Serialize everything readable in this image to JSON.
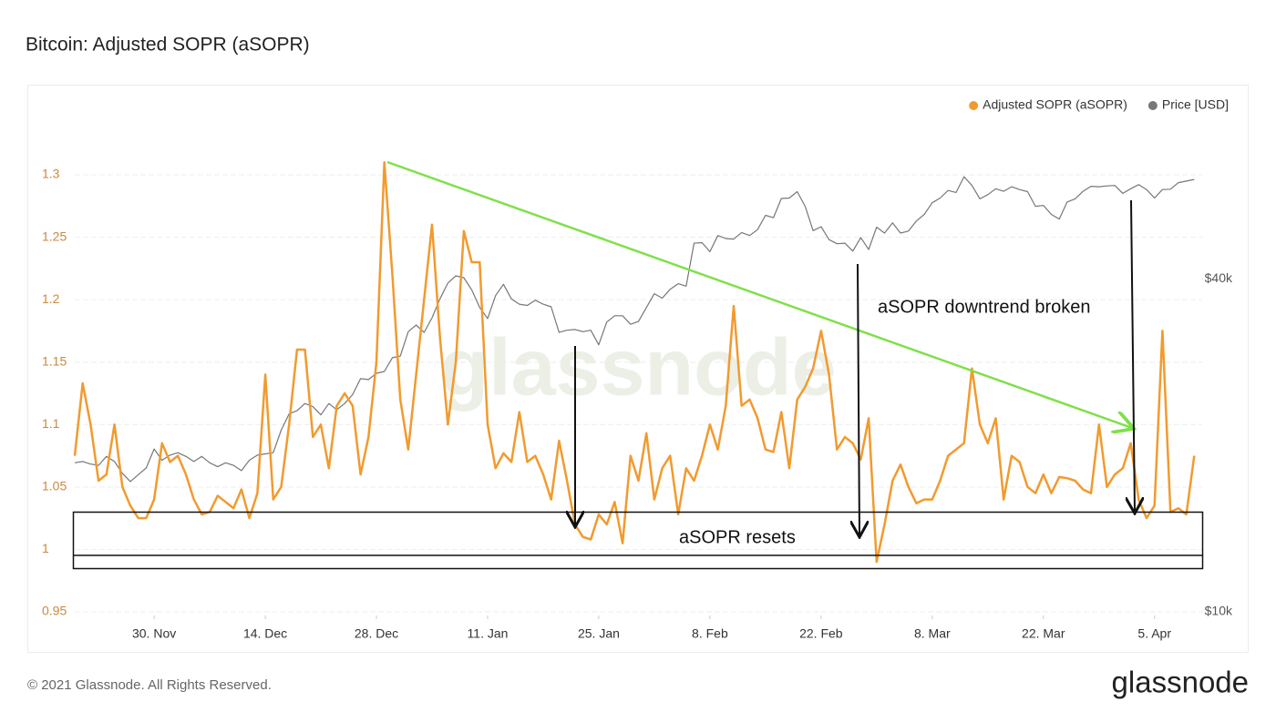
{
  "chart_data": {
    "type": "line",
    "title": "Bitcoin: Adjusted SOPR (aSOPR)",
    "watermark": "glassnode",
    "annotations": [
      "aSOPR downtrend broken",
      "aSOPR resets"
    ],
    "x": [
      -10,
      -9,
      -8,
      -7,
      -6,
      -5,
      -4,
      -3,
      -2,
      -1,
      0,
      1,
      2,
      3,
      4,
      5,
      6,
      7,
      8,
      9,
      10,
      11,
      12,
      13,
      14,
      15,
      16,
      17,
      18,
      19,
      20,
      21,
      22,
      23,
      24,
      25,
      26,
      27,
      28,
      29,
      30,
      31,
      32,
      33,
      34,
      35,
      36,
      37,
      38,
      39,
      40,
      41,
      42,
      43,
      44,
      45,
      46,
      47,
      48,
      49,
      50,
      51,
      52,
      53,
      54,
      55,
      56,
      57,
      58,
      59,
      60,
      61,
      62,
      63,
      64,
      65,
      66,
      67,
      68,
      69,
      70,
      71,
      72,
      73,
      74,
      75,
      76,
      77,
      78,
      79,
      80,
      81,
      82,
      83,
      84,
      85,
      86,
      87,
      88,
      89,
      90,
      91,
      92,
      93,
      94,
      95,
      96,
      97,
      98,
      99,
      100,
      101,
      102,
      103,
      104,
      105,
      106,
      107,
      108,
      109,
      110,
      111,
      112,
      113,
      114,
      115,
      116,
      117,
      118,
      119,
      120,
      121,
      122,
      123,
      124,
      125,
      126,
      127,
      128,
      129,
      130,
      131
    ],
    "xlim": [
      -10,
      132
    ],
    "xticks": [
      {
        "value": 0,
        "label": "30. Nov"
      },
      {
        "value": 14,
        "label": "14. Dec"
      },
      {
        "value": 28,
        "label": "28. Dec"
      },
      {
        "value": 42,
        "label": "11. Jan"
      },
      {
        "value": 56,
        "label": "25. Jan"
      },
      {
        "value": 70,
        "label": "8. Feb"
      },
      {
        "value": 84,
        "label": "22. Feb"
      },
      {
        "value": 98,
        "label": "8. Mar"
      },
      {
        "value": 112,
        "label": "22. Mar"
      },
      {
        "value": 126,
        "label": "5. Apr"
      }
    ],
    "ylim": [
      0.95,
      1.35
    ],
    "yticks": [
      0.95,
      1,
      1.05,
      1.1,
      1.15,
      1.2,
      1.25,
      1.3
    ],
    "y2lim": [
      10000,
      80000
    ],
    "y2ticks": [
      {
        "value": 10000,
        "label": "$10k"
      },
      {
        "value": 40000,
        "label": "$40k"
      }
    ],
    "y2scale": "log",
    "grid": true,
    "legend": "top-right",
    "series": [
      {
        "name": "Adjusted SOPR (aSOPR)",
        "color": "#f29a2e",
        "values": [
          1.075,
          1.133,
          1.1,
          1.055,
          1.06,
          1.1,
          1.05,
          1.035,
          1.025,
          1.025,
          1.04,
          1.085,
          1.07,
          1.075,
          1.06,
          1.04,
          1.028,
          1.03,
          1.043,
          1.038,
          1.033,
          1.048,
          1.025,
          1.045,
          1.14,
          1.04,
          1.05,
          1.1,
          1.16,
          1.16,
          1.09,
          1.1,
          1.065,
          1.115,
          1.125,
          1.115,
          1.06,
          1.09,
          1.15,
          1.31,
          1.22,
          1.12,
          1.08,
          1.14,
          1.2,
          1.26,
          1.17,
          1.1,
          1.15,
          1.255,
          1.23,
          1.23,
          1.1,
          1.065,
          1.077,
          1.07,
          1.11,
          1.07,
          1.075,
          1.06,
          1.04,
          1.087,
          1.055,
          1.02,
          1.01,
          1.008,
          1.028,
          1.02,
          1.038,
          1.005,
          1.075,
          1.055,
          1.093,
          1.04,
          1.065,
          1.075,
          1.028,
          1.065,
          1.055,
          1.075,
          1.1,
          1.08,
          1.115,
          1.195,
          1.115,
          1.12,
          1.105,
          1.08,
          1.078,
          1.11,
          1.065,
          1.12,
          1.13,
          1.145,
          1.175,
          1.14,
          1.08,
          1.09,
          1.085,
          1.072,
          1.105,
          0.99,
          1.02,
          1.055,
          1.068,
          1.05,
          1.037,
          1.04,
          1.04,
          1.055,
          1.075,
          1.08,
          1.085,
          1.145,
          1.1,
          1.085,
          1.105,
          1.04,
          1.075,
          1.07,
          1.05,
          1.045,
          1.06,
          1.045,
          1.058,
          1.057,
          1.055,
          1.048,
          1.045,
          1.1,
          1.05,
          1.06,
          1.065,
          1.085,
          1.04,
          1.025,
          1.035,
          1.175,
          1.03,
          1.033,
          1.028,
          1.075
        ]
      },
      {
        "name": "Price [USD]",
        "color": "#777777",
        "axis": "y2",
        "values": [
          18600,
          18700,
          18500,
          18400,
          19100,
          18700,
          17800,
          17200,
          17700,
          18200,
          19700,
          18800,
          19200,
          19400,
          19100,
          18700,
          19100,
          18600,
          18300,
          18600,
          18400,
          18000,
          18800,
          19200,
          19300,
          19400,
          21300,
          22800,
          23100,
          23800,
          23500,
          22700,
          23800,
          23200,
          23800,
          24700,
          26400,
          26300,
          27000,
          27200,
          28800,
          29000,
          32100,
          33000,
          32000,
          34000,
          36800,
          39300,
          40500,
          40200,
          38200,
          35500,
          33900,
          37300,
          39100,
          36800,
          36000,
          35800,
          36600,
          36000,
          35600,
          32000,
          32300,
          32400,
          32100,
          32300,
          30400,
          33400,
          34300,
          34300,
          33100,
          33500,
          35500,
          37600,
          36900,
          38300,
          39200,
          38800,
          46400,
          46500,
          44800,
          47900,
          47300,
          47200,
          48500,
          47900,
          49100,
          52100,
          51600,
          55900,
          56000,
          57500,
          54100,
          48900,
          49700,
          47100,
          46300,
          46400,
          44900,
          47500,
          45200,
          49600,
          48400,
          50500,
          48400,
          48800,
          50900,
          52300,
          54900,
          56000,
          57800,
          57300,
          61200,
          59000,
          55800,
          56800,
          58200,
          57600,
          58700,
          58000,
          57500,
          54100,
          54300,
          52300,
          51300,
          55100,
          55800,
          57600,
          58800,
          58700,
          58900,
          59000,
          57100,
          58200,
          59200,
          58000,
          56000,
          58000,
          58100,
          59700,
          60100,
          60500
        ]
      }
    ]
  },
  "footer": {
    "copyright": "© 2021 Glassnode. All Rights Reserved.",
    "logo": "glassnode"
  }
}
